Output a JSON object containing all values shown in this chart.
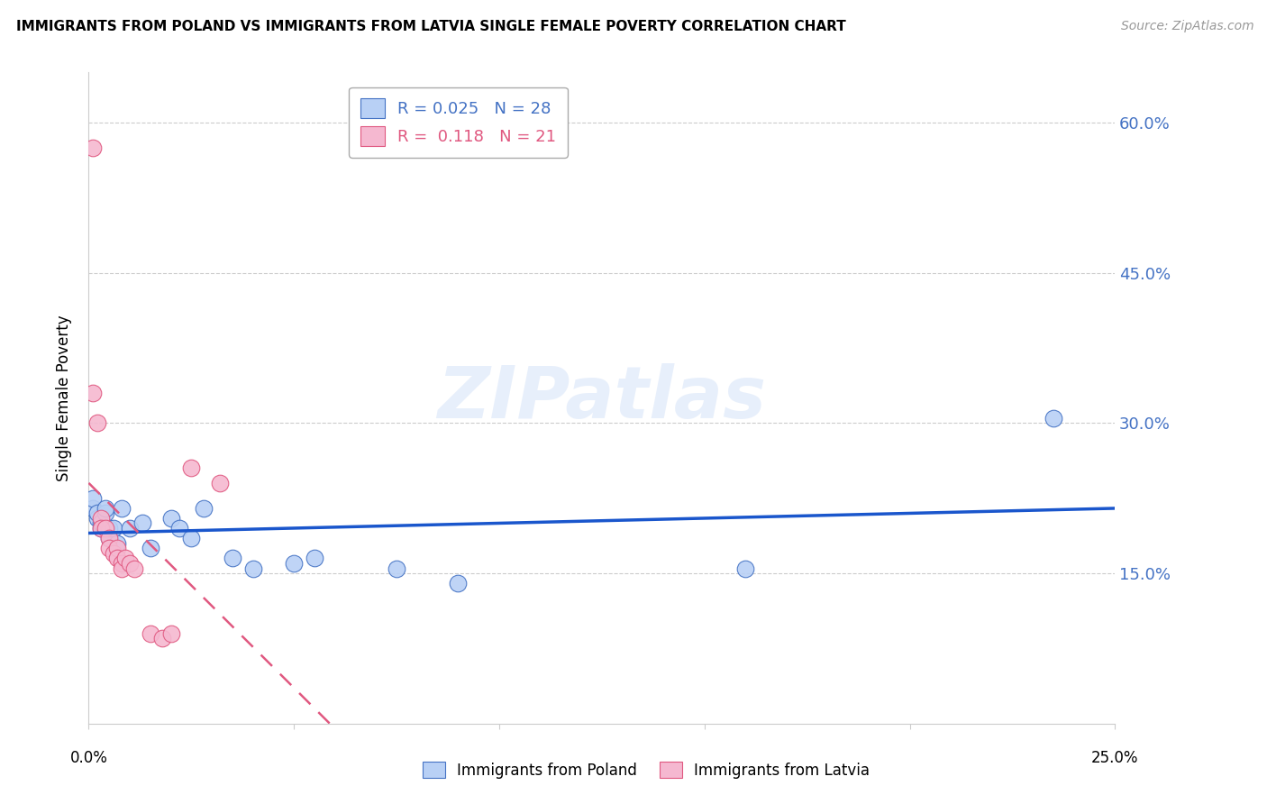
{
  "title": "IMMIGRANTS FROM POLAND VS IMMIGRANTS FROM LATVIA SINGLE FEMALE POVERTY CORRELATION CHART",
  "source": "Source: ZipAtlas.com",
  "ylabel": "Single Female Poverty",
  "ytick_labels": [
    "15.0%",
    "30.0%",
    "45.0%",
    "60.0%"
  ],
  "ytick_values": [
    0.15,
    0.3,
    0.45,
    0.6
  ],
  "xlim": [
    0.0,
    0.25
  ],
  "ylim": [
    0.0,
    0.65
  ],
  "legend_poland_R": "0.025",
  "legend_poland_N": "28",
  "legend_latvia_R": "0.118",
  "legend_latvia_N": "21",
  "poland_color": "#b8d0f5",
  "latvia_color": "#f5b8d0",
  "poland_edge_color": "#4472c4",
  "latvia_edge_color": "#e05880",
  "poland_line_color": "#1a56cc",
  "latvia_line_color": "#e05880",
  "watermark": "ZIPatlas",
  "poland_x": [
    0.001,
    0.001,
    0.002,
    0.002,
    0.003,
    0.003,
    0.004,
    0.004,
    0.005,
    0.005,
    0.006,
    0.007,
    0.008,
    0.01,
    0.013,
    0.015,
    0.02,
    0.022,
    0.025,
    0.028,
    0.035,
    0.04,
    0.05,
    0.055,
    0.075,
    0.09,
    0.16,
    0.235
  ],
  "poland_y": [
    0.215,
    0.225,
    0.205,
    0.21,
    0.195,
    0.2,
    0.21,
    0.215,
    0.185,
    0.195,
    0.195,
    0.18,
    0.215,
    0.195,
    0.2,
    0.175,
    0.205,
    0.195,
    0.185,
    0.215,
    0.165,
    0.155,
    0.16,
    0.165,
    0.155,
    0.14,
    0.155,
    0.305
  ],
  "latvia_x": [
    0.001,
    0.001,
    0.002,
    0.003,
    0.003,
    0.004,
    0.005,
    0.005,
    0.006,
    0.007,
    0.007,
    0.008,
    0.008,
    0.009,
    0.01,
    0.011,
    0.015,
    0.018,
    0.02,
    0.025,
    0.032
  ],
  "latvia_y": [
    0.575,
    0.33,
    0.3,
    0.205,
    0.195,
    0.195,
    0.185,
    0.175,
    0.17,
    0.175,
    0.165,
    0.16,
    0.155,
    0.165,
    0.16,
    0.155,
    0.09,
    0.085,
    0.09,
    0.255,
    0.24
  ]
}
